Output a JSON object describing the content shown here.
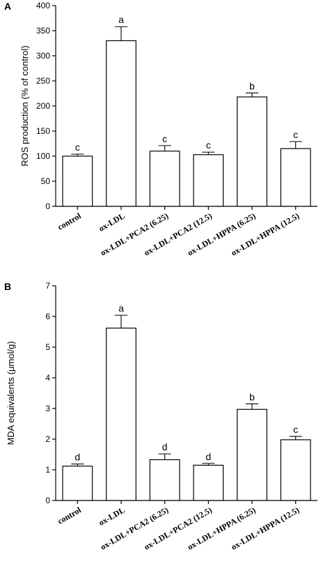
{
  "chart_data": [
    {
      "panel": "A",
      "type": "bar",
      "categories": [
        "control",
        "ox-LDL",
        "ox-LDL+PCA2 (6.25)",
        "ox-LDL+PCA2 (12.5)",
        "ox-LDL+HPPA (6.25)",
        "ox-LDL+HPPA (12.5)"
      ],
      "values": [
        100,
        330,
        110,
        103,
        218,
        115
      ],
      "errors": [
        4,
        28,
        11,
        5,
        8,
        14
      ],
      "significance": [
        "c",
        "a",
        "c",
        "c",
        "b",
        "c"
      ],
      "ylabel": "ROS production (% of control)",
      "ylim": [
        0,
        400
      ],
      "yticks": [
        0,
        50,
        100,
        150,
        200,
        250,
        300,
        350,
        400
      ]
    },
    {
      "panel": "B",
      "type": "bar",
      "categories": [
        "control",
        "ox-LDL",
        "ox-LDL+PCA2 (6.25)",
        "ox-LDL+PCA2 (12.5)",
        "ox-LDL+HPPA (6.25)",
        "ox-LDL+HPPA (12.5)"
      ],
      "values": [
        1.12,
        5.62,
        1.33,
        1.15,
        2.97,
        1.98
      ],
      "errors": [
        0.07,
        0.42,
        0.19,
        0.06,
        0.18,
        0.11
      ],
      "significance": [
        "d",
        "a",
        "d",
        "d",
        "b",
        "c"
      ],
      "ylabel": "MDA equivalents (μmol/g)",
      "ylim": [
        0,
        7
      ],
      "yticks": [
        0,
        1,
        2,
        3,
        4,
        5,
        6,
        7
      ]
    }
  ]
}
